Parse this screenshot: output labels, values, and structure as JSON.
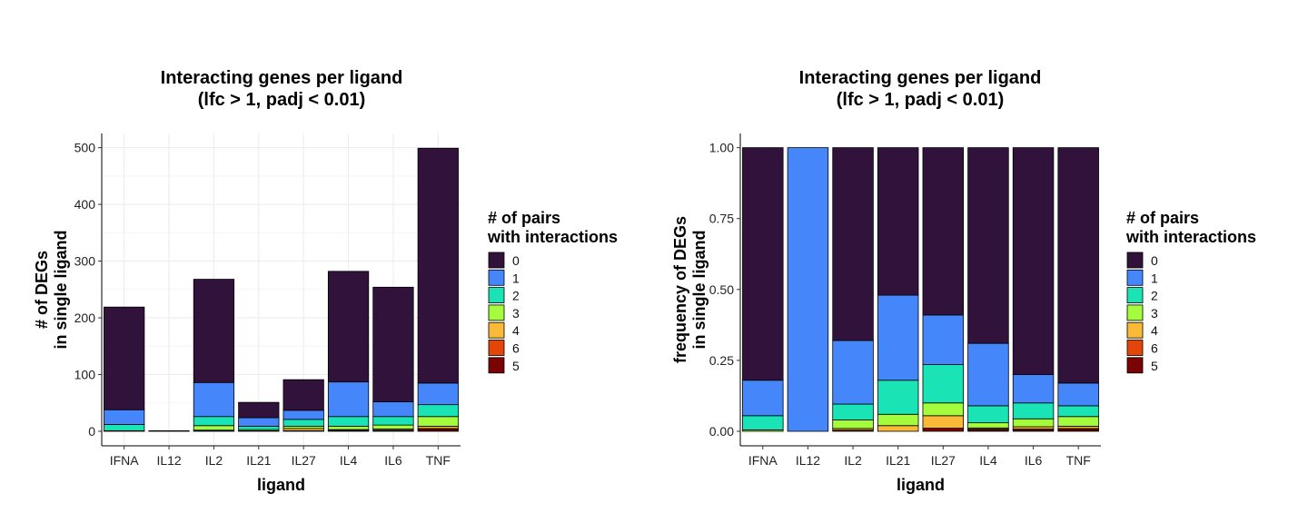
{
  "chart_data": [
    {
      "type": "bar",
      "stacked": true,
      "title": [
        "Interacting genes per ligand",
        "(lfc > 1, padj < 0.01)"
      ],
      "xlabel": "ligand",
      "ylabel": [
        "# of DEGs",
        "in single ligand"
      ],
      "ylim": [
        0,
        525
      ],
      "yticks": [
        0,
        100,
        200,
        300,
        400,
        500
      ],
      "ytick_labels": [
        "0",
        "100",
        "200",
        "300",
        "400",
        "500"
      ],
      "grid": true,
      "categories": [
        "IFNA",
        "IL12",
        "IL2",
        "IL21",
        "IL27",
        "IL4",
        "IL6",
        "TNF"
      ],
      "series": [
        {
          "name": "5",
          "color": "#7a0403",
          "values": [
            0,
            0,
            1,
            0,
            1,
            1,
            1,
            3
          ]
        },
        {
          "name": "6",
          "color": "#e4460a",
          "values": [
            0,
            0,
            0,
            0,
            0,
            1,
            1,
            2
          ]
        },
        {
          "name": "4",
          "color": "#fbb938",
          "values": [
            0,
            0,
            1,
            1,
            4,
            1,
            2,
            4
          ]
        },
        {
          "name": "3",
          "color": "#a4fc3c",
          "values": [
            1,
            0,
            8,
            2,
            4,
            6,
            7,
            17
          ]
        },
        {
          "name": "2",
          "color": "#1ae4b6",
          "values": [
            11,
            0,
            16,
            6,
            12,
            17,
            15,
            21
          ]
        },
        {
          "name": "1",
          "color": "#4686fb",
          "values": [
            26,
            1,
            60,
            15,
            16,
            61,
            26,
            38
          ]
        },
        {
          "name": "0",
          "color": "#30123b",
          "values": [
            181,
            0,
            182,
            27,
            54,
            195,
            202,
            414
          ]
        }
      ],
      "legend": {
        "title": [
          "# of pairs",
          "with interactions"
        ],
        "position": "right",
        "entries": [
          "0",
          "1",
          "2",
          "3",
          "4",
          "6",
          "5"
        ]
      }
    },
    {
      "type": "bar",
      "stacked": true,
      "title": [
        "Interacting genes per ligand",
        "(lfc > 1, padj < 0.01)"
      ],
      "xlabel": "ligand",
      "ylabel": [
        "frequency of DEGs",
        "in single ligand"
      ],
      "ylim": [
        0,
        1.05
      ],
      "yticks": [
        0,
        0.25,
        0.5,
        0.75,
        1.0
      ],
      "ytick_labels": [
        "0.00",
        "0.25",
        "0.50",
        "0.75",
        "1.00"
      ],
      "grid": false,
      "categories": [
        "IFNA",
        "IL12",
        "IL2",
        "IL21",
        "IL27",
        "IL4",
        "IL6",
        "TNF"
      ],
      "series": [
        {
          "name": "5",
          "color": "#7a0403",
          "values": [
            0,
            0,
            0.004,
            0,
            0.011,
            0.004,
            0.004,
            0.006
          ]
        },
        {
          "name": "6",
          "color": "#e4460a",
          "values": [
            0,
            0,
            0,
            0,
            0,
            0.004,
            0.004,
            0.004
          ]
        },
        {
          "name": "4",
          "color": "#fbb938",
          "values": [
            0,
            0,
            0.006,
            0.02,
            0.044,
            0.004,
            0.008,
            0.008
          ]
        },
        {
          "name": "3",
          "color": "#a4fc3c",
          "values": [
            0.005,
            0,
            0.03,
            0.04,
            0.045,
            0.018,
            0.028,
            0.034
          ]
        },
        {
          "name": "2",
          "color": "#1ae4b6",
          "values": [
            0.05,
            0,
            0.056,
            0.12,
            0.135,
            0.06,
            0.056,
            0.038
          ]
        },
        {
          "name": "1",
          "color": "#4686fb",
          "values": [
            0.125,
            1.0,
            0.224,
            0.3,
            0.175,
            0.22,
            0.1,
            0.08
          ]
        },
        {
          "name": "0",
          "color": "#30123b",
          "values": [
            0.82,
            0,
            0.68,
            0.52,
            0.59,
            0.69,
            0.8,
            0.83
          ]
        }
      ],
      "legend": {
        "title": [
          "# of pairs",
          "with interactions"
        ],
        "position": "right",
        "entries": [
          "0",
          "1",
          "2",
          "3",
          "4",
          "6",
          "5"
        ]
      }
    }
  ]
}
